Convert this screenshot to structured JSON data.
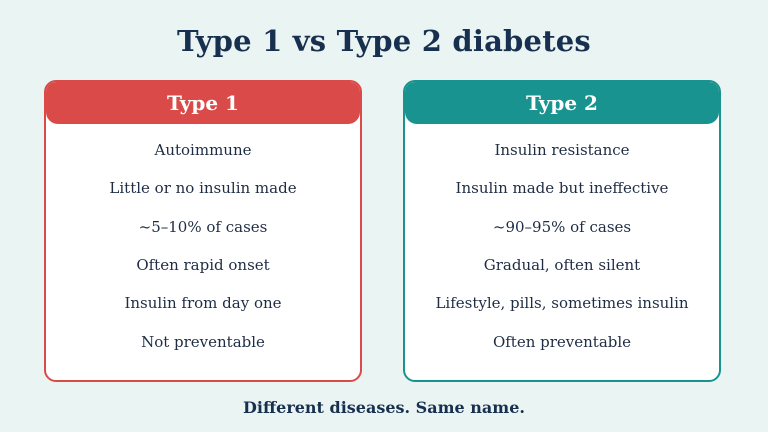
{
  "title": "Type 1 vs Type 2 diabetes",
  "colors": {
    "background": "#eaf4f3",
    "type1_accent": "#d94a49",
    "type2_accent": "#18938f",
    "title_text": "#17304f"
  },
  "type1": {
    "header": "Type 1",
    "items": [
      "Autoimmune",
      "Little or no insulin made",
      "~5–10% of cases",
      "Often rapid onset",
      "Insulin from day one",
      "Not preventable"
    ]
  },
  "type2": {
    "header": "Type 2",
    "items": [
      "Insulin resistance",
      "Insulin made but ineffective",
      "~90–95% of cases",
      "Gradual, often silent",
      "Lifestyle, pills, sometimes insulin",
      "Often preventable"
    ]
  },
  "footer": "Different diseases. Same name."
}
